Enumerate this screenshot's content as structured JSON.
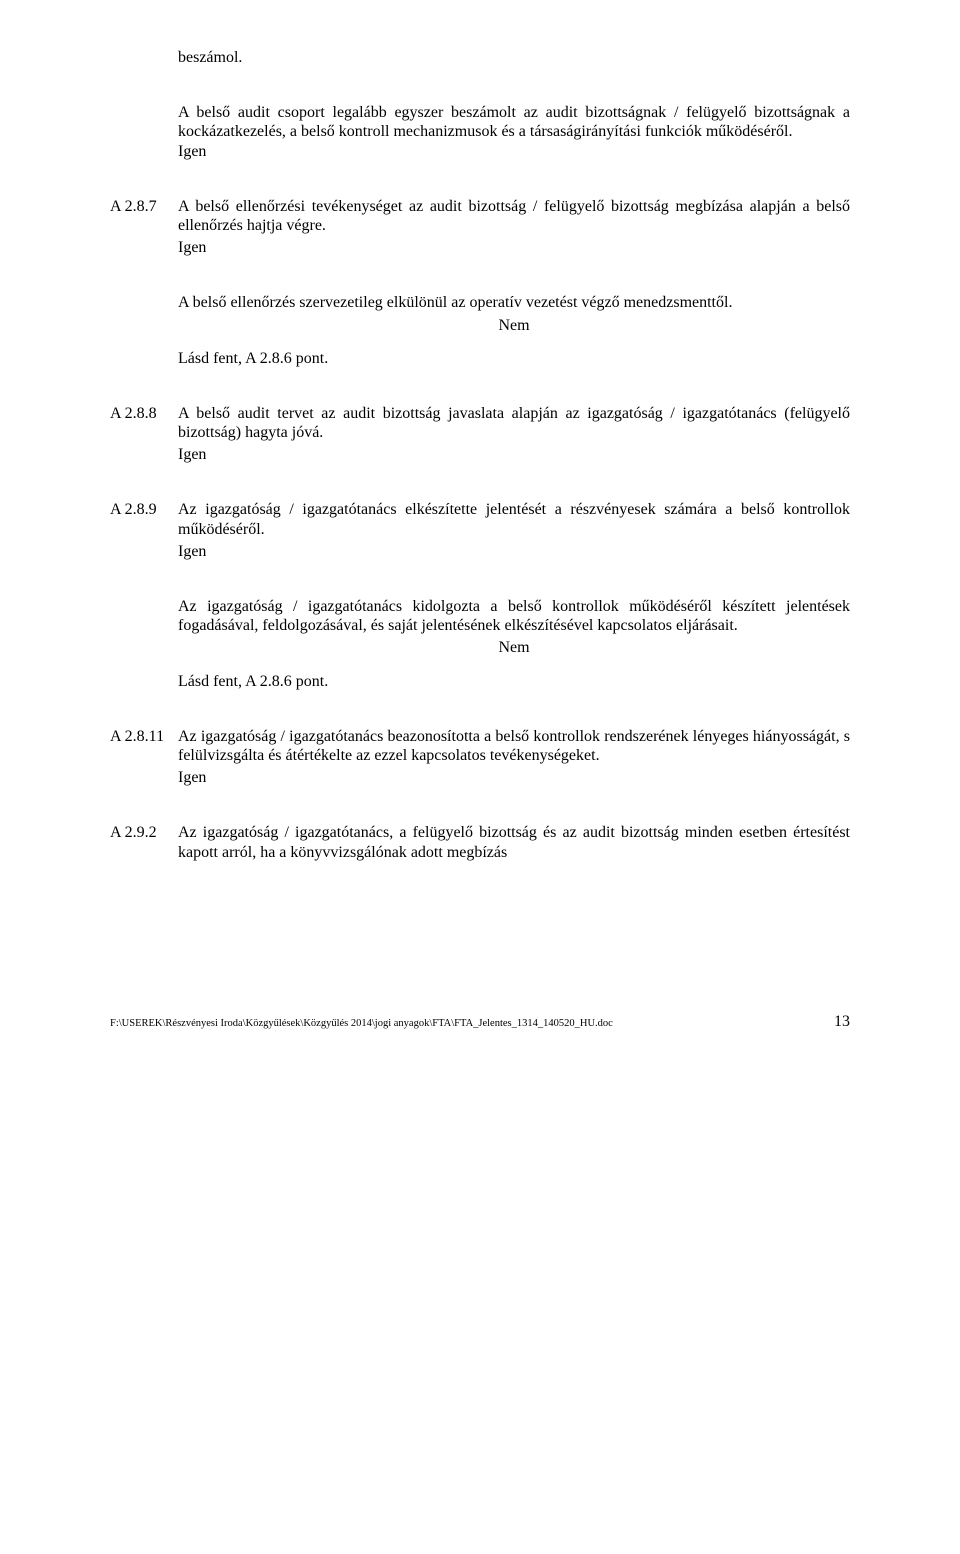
{
  "opening": {
    "lead": "beszámol.",
    "para": "A belső audit csoport legalább egyszer beszámolt az audit bizottságnak / felügyelő bizottságnak a kockázatkezelés, a belső kontroll mechanizmusok és a társaságirányítási funkciók működéséről.",
    "answer": "Igen"
  },
  "items": [
    {
      "id": "A 2.8.7",
      "text": "A belső ellenőrzési tevékenységet az audit bizottság / felügyelő bizottság megbízása alapján a belső ellenőrzés hajtja végre.",
      "answer": "Igen"
    }
  ],
  "mid_block": {
    "text": "A belső ellenőrzés szervezetileg elkülönül az operatív vezetést végző menedzsmenttől.",
    "answer": "Nem",
    "ref": "Lásd fent, A 2.8.6 pont."
  },
  "items2": [
    {
      "id": "A 2.8.8",
      "text": "A belső audit tervet az audit bizottság javaslata alapján az igazgatóság / igazgatótanács (felügyelő bizottság) hagyta jóvá.",
      "answer": "Igen"
    },
    {
      "id": "A 2.8.9",
      "text": "Az igazgatóság / igazgatótanács elkészítette jelentését a részvényesek számára a belső kontrollok működéséről.",
      "answer": "Igen"
    }
  ],
  "mid_block2": {
    "text": "Az igazgatóság / igazgatótanács kidolgozta a belső kontrollok működéséről készített jelentések fogadásával, feldolgozásával, és saját jelentésének elkészítésével kapcsolatos eljárásait.",
    "answer": "Nem",
    "ref": "Lásd fent, A 2.8.6 pont."
  },
  "items3": [
    {
      "id": "A 2.8.11",
      "text": "Az igazgatóság / igazgatótanács beazonosította a belső kontrollok rendszerének lényeges hiányosságát, s felülvizsgálta és átértékelte az ezzel kapcsolatos tevékenységeket.",
      "answer": "Igen"
    }
  ],
  "last": {
    "id": "A 2.9.2",
    "text": "Az igazgatóság / igazgatótanács, a felügyelő bizottság és az audit bizottság minden esetben értesítést kapott arról, ha a könyvvizsgálónak adott megbízás"
  },
  "footer": {
    "path": "F:\\USEREK\\Részvényesi Iroda\\Közgyűlések\\Közgyűlés 2014\\jogi anyagok\\FTA\\FTA_Jelentes_1314_140520_HU.doc",
    "page": "13"
  }
}
